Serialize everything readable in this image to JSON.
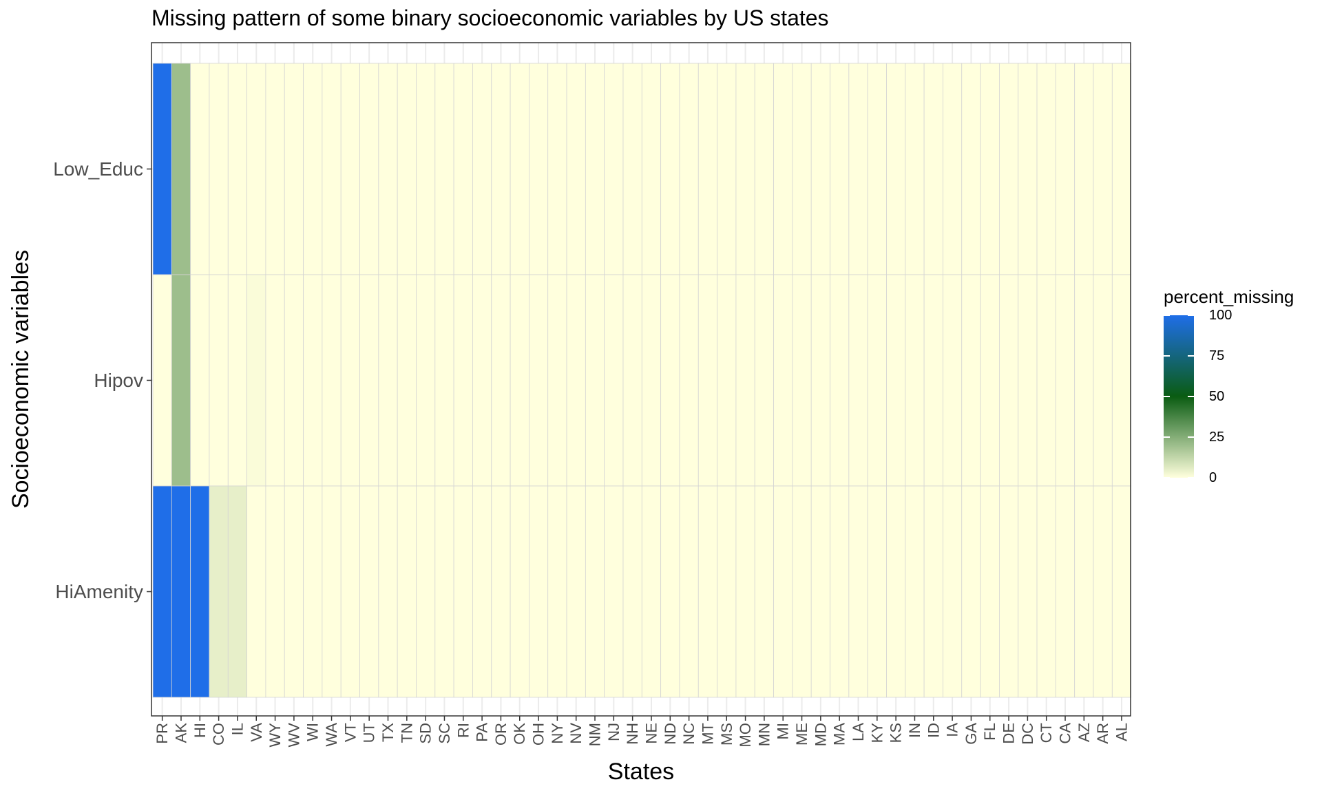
{
  "chart_data": {
    "type": "heatmap",
    "title": "Missing pattern of some binary socioeconomic variables by US states",
    "xlabel": "States",
    "ylabel": "Socioeconomic variables",
    "x_categories": [
      "PR",
      "AK",
      "HI",
      "CO",
      "IL",
      "VA",
      "WY",
      "WV",
      "WI",
      "WA",
      "VT",
      "UT",
      "TX",
      "TN",
      "SD",
      "SC",
      "RI",
      "PA",
      "OR",
      "OK",
      "OH",
      "NY",
      "NV",
      "NM",
      "NJ",
      "NH",
      "NE",
      "ND",
      "NC",
      "MT",
      "MS",
      "MO",
      "MN",
      "MI",
      "ME",
      "MD",
      "MA",
      "LA",
      "KY",
      "KS",
      "IN",
      "ID",
      "IA",
      "GA",
      "FL",
      "DE",
      "DC",
      "CT",
      "CA",
      "AZ",
      "AR",
      "AL"
    ],
    "y_categories": [
      "Low_Educ",
      "Hipov",
      "HiAmenity"
    ],
    "z_label": "percent_missing",
    "z_range": [
      0,
      100
    ],
    "legend": {
      "title": "percent_missing",
      "ticks": [
        100,
        75,
        50,
        25,
        0
      ],
      "colors": {
        "high": "#1f6ee8",
        "mid": "#0a5c12",
        "low": "#ffffdd"
      }
    },
    "legend_position": "right",
    "grid": true,
    "values": {
      "Low_Educ": {
        "PR": 100,
        "AK": 20
      },
      "Hipov": {
        "AK": 20,
        "VA": 1
      },
      "HiAmenity": {
        "PR": 100,
        "AK": 100,
        "HI": 100,
        "CO": 5,
        "IL": 5
      }
    },
    "default_value": 0
  }
}
